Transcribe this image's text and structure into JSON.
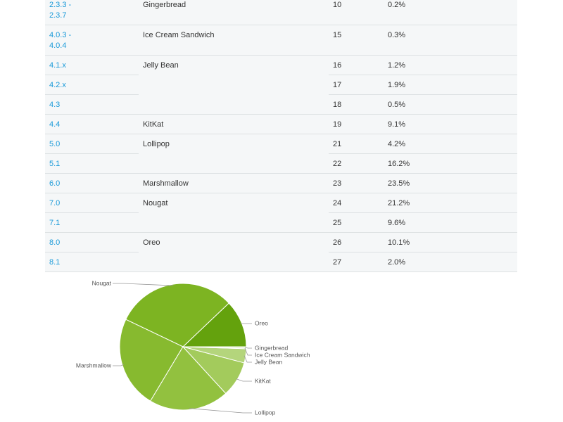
{
  "table": {
    "groups": [
      {
        "codename": "Gingerbread",
        "rows": [
          [
            "2.3.3 - 2.3.7",
            "10",
            "0.2%"
          ]
        ]
      },
      {
        "codename": "Ice Cream Sandwich",
        "rows": [
          [
            "4.0.3 - 4.0.4",
            "15",
            "0.3%"
          ]
        ]
      },
      {
        "codename": "Jelly Bean",
        "rows": [
          [
            "4.1.x",
            "16",
            "1.2%"
          ],
          [
            "4.2.x",
            "17",
            "1.9%"
          ],
          [
            "4.3",
            "18",
            "0.5%"
          ]
        ]
      },
      {
        "codename": "KitKat",
        "rows": [
          [
            "4.4",
            "19",
            "9.1%"
          ]
        ]
      },
      {
        "codename": "Lollipop",
        "rows": [
          [
            "5.0",
            "21",
            "4.2%"
          ],
          [
            "5.1",
            "22",
            "16.2%"
          ]
        ]
      },
      {
        "codename": "Marshmallow",
        "rows": [
          [
            "6.0",
            "23",
            "23.5%"
          ]
        ]
      },
      {
        "codename": "Nougat",
        "rows": [
          [
            "7.0",
            "24",
            "21.2%"
          ],
          [
            "7.1",
            "25",
            "9.6%"
          ]
        ]
      },
      {
        "codename": "Oreo",
        "rows": [
          [
            "8.0",
            "26",
            "10.1%"
          ],
          [
            "8.1",
            "27",
            "2.0%"
          ]
        ]
      }
    ]
  },
  "chart_data": {
    "type": "pie",
    "categories": [
      "Oreo",
      "Nougat",
      "Marshmallow",
      "Lollipop",
      "KitKat",
      "Jelly Bean",
      "Ice Cream Sandwich",
      "Gingerbread"
    ],
    "values": [
      12.1,
      30.8,
      23.5,
      20.4,
      9.1,
      3.6,
      0.3,
      0.2
    ],
    "colors": [
      "#64a20d",
      "#7db422",
      "#87ba2f",
      "#92c13f",
      "#a3cb5c",
      "#b4d57c",
      "#c4df98",
      "#d4e8b5"
    ]
  }
}
